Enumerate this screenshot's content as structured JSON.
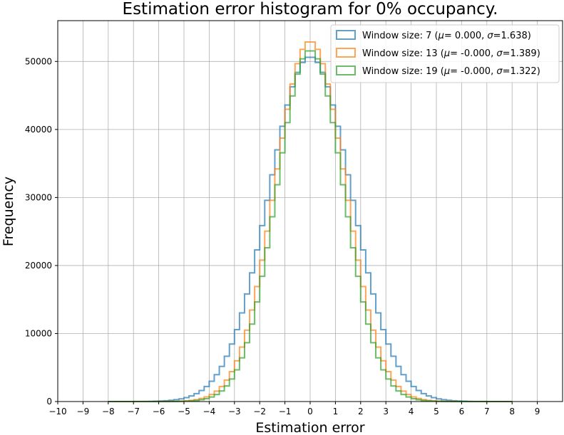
{
  "chart_data": {
    "type": "histogram-step",
    "title": "Estimation error histogram for 0% occupancy.",
    "xlabel": "Estimation error",
    "ylabel": "Frequency",
    "xlim": [
      -10,
      10
    ],
    "ylim": [
      0,
      56000
    ],
    "xticks": [
      -10,
      -9,
      -8,
      -7,
      -6,
      -5,
      -4,
      -3,
      -2,
      -1,
      0,
      1,
      2,
      3,
      4,
      5,
      6,
      7,
      8,
      9
    ],
    "yticks": [
      0,
      10000,
      20000,
      30000,
      40000,
      50000
    ],
    "grid": true,
    "legend_position": "top-right",
    "bin_range": [
      -8,
      8
    ],
    "bin_width": 0.2,
    "series": [
      {
        "name": "Window size: 7 (μ= 0.000, σ=1.638)",
        "label_prefix": "Window size: 7 (",
        "mu_label": "μ",
        "mu_text": "= 0.000, ",
        "sigma_label": "σ",
        "sigma_text": "=1.638)",
        "color": "#1f77b4",
        "peak": 50700,
        "mu": 0.0,
        "sigma": 1.638
      },
      {
        "name": "Window size: 13 (μ= -0.000, σ=1.389)",
        "label_prefix": "Window size: 13 (",
        "mu_label": "μ",
        "mu_text": "= -0.000, ",
        "sigma_label": "σ",
        "sigma_text": "=1.389)",
        "color": "#ff7f0e",
        "peak": 53000,
        "mu": 0.0,
        "sigma": 1.389
      },
      {
        "name": "Window size: 19 (μ= -0.000, σ=1.322)",
        "label_prefix": "Window size: 19 (",
        "mu_label": "μ",
        "mu_text": "= -0.000, ",
        "sigma_label": "σ",
        "sigma_text": "=1.322)",
        "color": "#2ca02c",
        "peak": 51700,
        "mu": 0.0,
        "sigma": 1.322
      }
    ]
  }
}
